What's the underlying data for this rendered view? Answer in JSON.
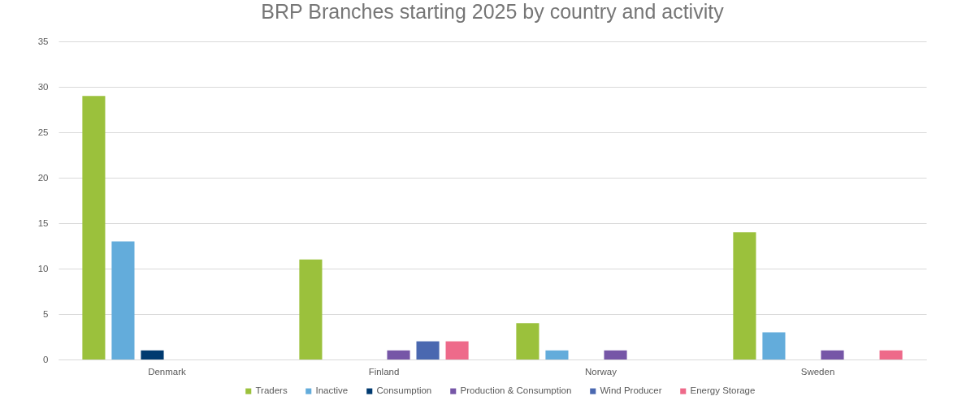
{
  "chart_data": {
    "type": "bar",
    "title": "BRP Branches starting 2025 by country and activity",
    "categories": [
      "Denmark",
      "Finland",
      "Norway",
      "Sweden"
    ],
    "series": [
      {
        "name": "Traders",
        "color": "#9bc13c",
        "values": [
          29,
          11,
          4,
          14
        ]
      },
      {
        "name": "Inactive",
        "color": "#63acdb",
        "values": [
          13,
          null,
          1,
          3
        ]
      },
      {
        "name": "Consumption",
        "color": "#003a70",
        "values": [
          1,
          null,
          null,
          null
        ]
      },
      {
        "name": "Production & Consumption",
        "color": "#7656a7",
        "values": [
          null,
          1,
          1,
          1
        ]
      },
      {
        "name": "Wind Producer",
        "color": "#4a68b0",
        "values": [
          null,
          2,
          null,
          null
        ]
      },
      {
        "name": "Energy Storage",
        "color": "#ee6a8a",
        "values": [
          null,
          2,
          null,
          1
        ]
      }
    ],
    "ylim": [
      0,
      35
    ],
    "yticks": [
      0,
      5,
      10,
      15,
      20,
      25,
      30,
      35
    ],
    "grid": "y",
    "legend": "bottom"
  }
}
